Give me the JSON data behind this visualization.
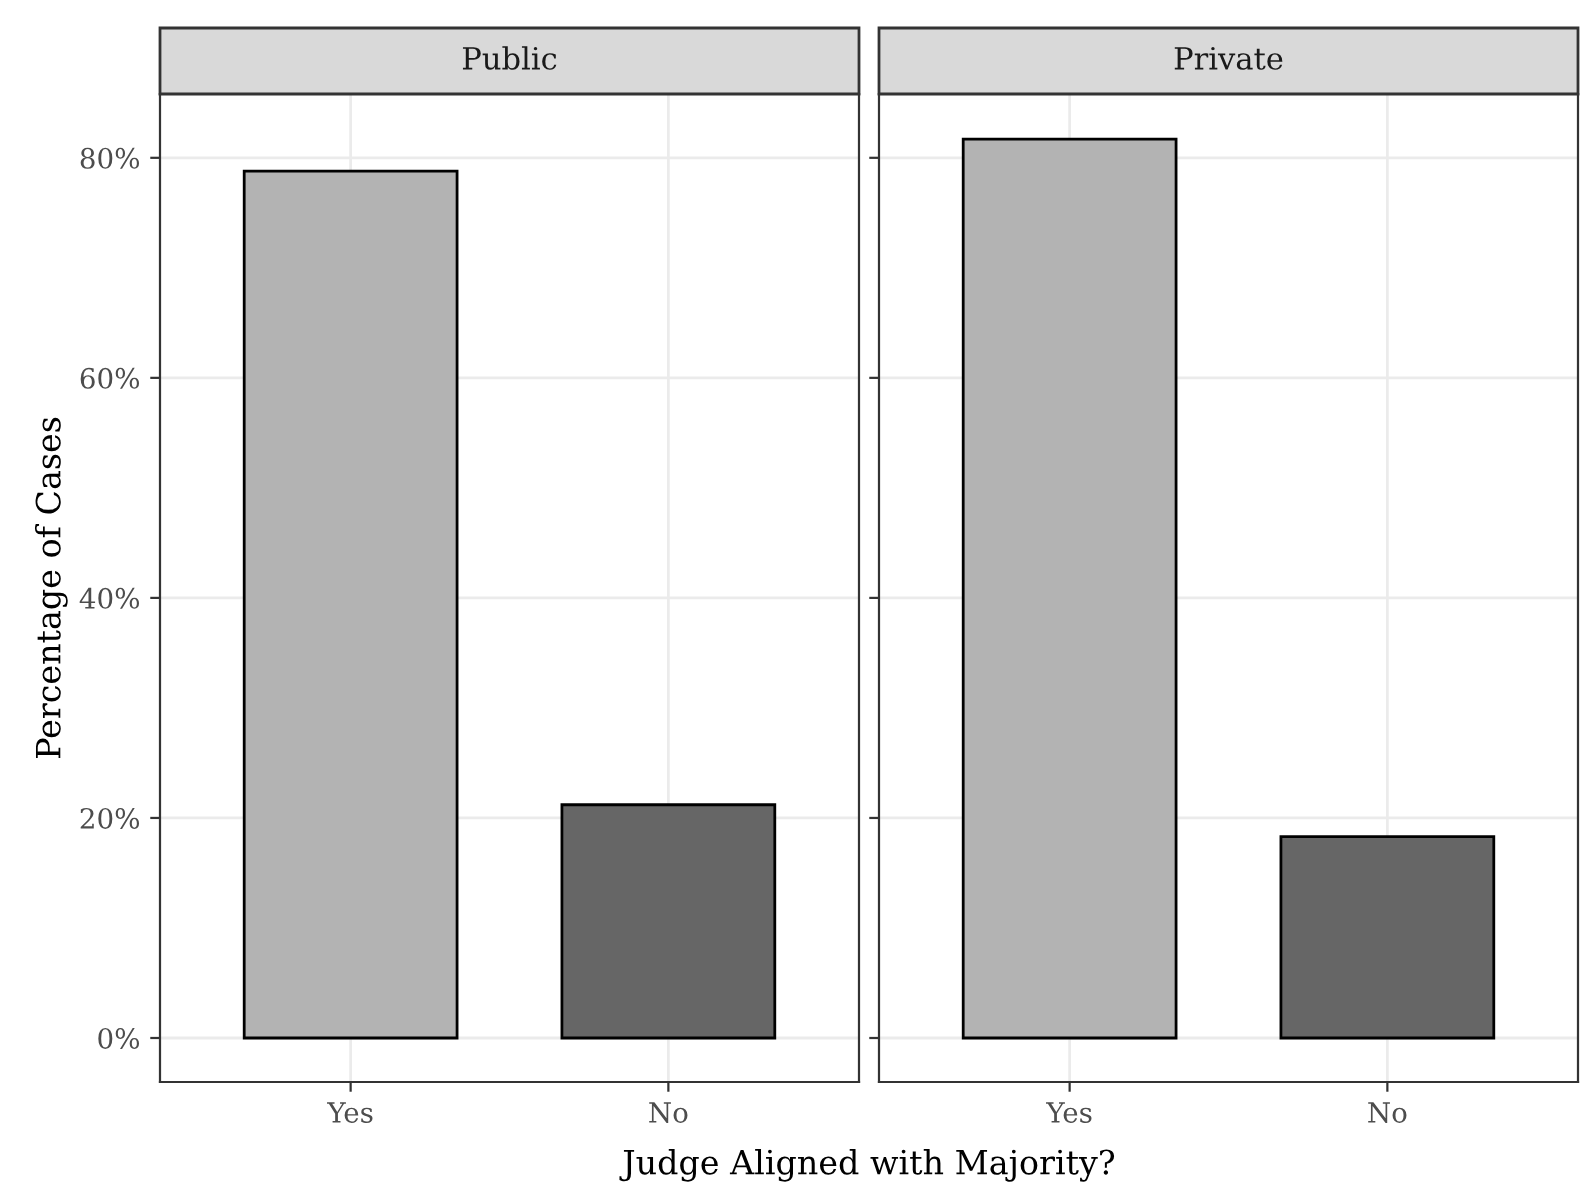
{
  "chart_data": [
    {
      "type": "bar",
      "title": "Public",
      "categories": [
        "Yes",
        "No"
      ],
      "colors": [
        "#b3b3b3",
        "#666666"
      ],
      "values": [
        78.8,
        21.2
      ],
      "ylim": [
        -4,
        85.8
      ],
      "yticks": [
        {
          "value": 0,
          "label": "0%"
        },
        {
          "value": 20,
          "label": "20%"
        },
        {
          "value": 40,
          "label": "40%"
        },
        {
          "value": 60,
          "label": "60%"
        },
        {
          "value": 80,
          "label": "80%"
        }
      ],
      "ylabel": "Percentage of Cases",
      "xlabel": "Judge Aligned with Majority?",
      "grid": true
    },
    {
      "type": "bar",
      "title": "Private",
      "categories": [
        "Yes",
        "No"
      ],
      "colors": [
        "#b3b3b3",
        "#666666"
      ],
      "values": [
        81.7,
        18.3
      ],
      "ylim": [
        -4,
        85.8
      ],
      "yticks": [
        {
          "value": 0,
          "label": null
        },
        {
          "value": 20,
          "label": null
        },
        {
          "value": 40,
          "label": null
        },
        {
          "value": 60,
          "label": null
        },
        {
          "value": 80,
          "label": null
        }
      ],
      "tick_labels": "x",
      "grid": true
    }
  ]
}
